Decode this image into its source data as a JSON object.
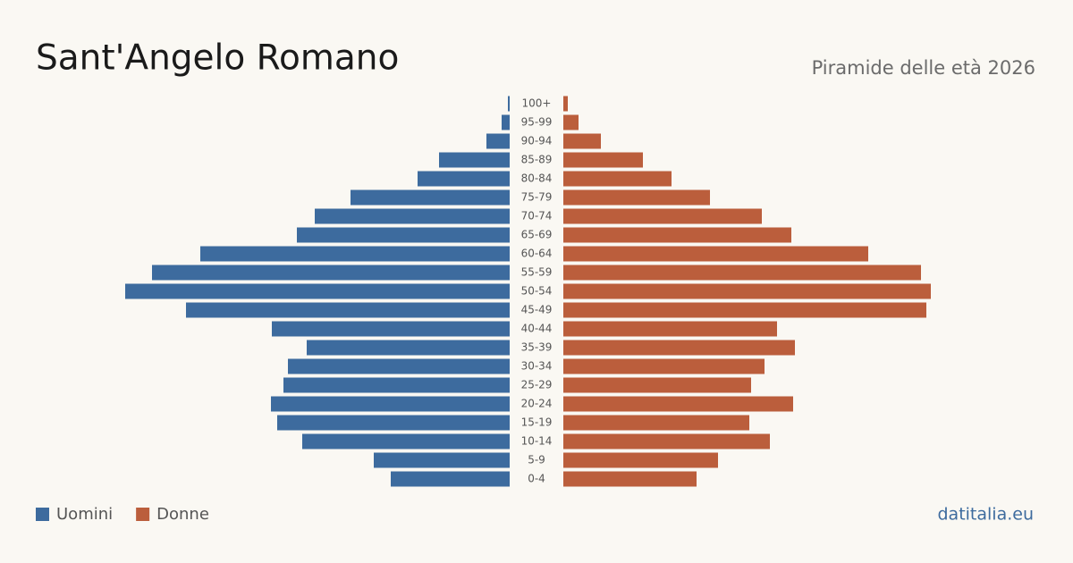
{
  "chart_data": {
    "type": "pyramid",
    "title": "Sant'Angelo Romano",
    "subtitle": "Piramide delle età 2026",
    "source": "datitalia.eu",
    "categories": [
      "100+",
      "95-99",
      "90-94",
      "85-89",
      "80-84",
      "75-79",
      "70-74",
      "65-69",
      "60-64",
      "55-59",
      "50-54",
      "45-49",
      "40-44",
      "35-39",
      "30-34",
      "25-29",
      "20-24",
      "15-19",
      "10-14",
      "5-9",
      "0-4"
    ],
    "series": [
      {
        "name": "Uomini",
        "color": "#3d6b9e",
        "values": [
          2,
          9,
          26,
          79,
          103,
          178,
          218,
          238,
          346,
          400,
          430,
          362,
          266,
          227,
          248,
          253,
          267,
          260,
          232,
          152,
          133
        ]
      },
      {
        "name": "Donne",
        "color": "#bb5e3c",
        "values": [
          5,
          17,
          42,
          89,
          121,
          164,
          222,
          255,
          341,
          400,
          411,
          406,
          239,
          259,
          225,
          210,
          257,
          208,
          231,
          173,
          149
        ]
      }
    ]
  }
}
